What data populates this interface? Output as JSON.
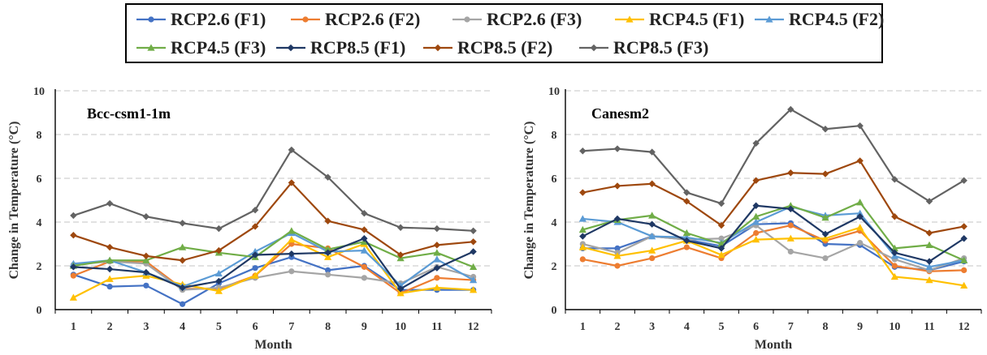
{
  "legend": [
    {
      "name": "RCP2.6 (F1)",
      "color": "#4472C4",
      "marker": "circle"
    },
    {
      "name": "RCP2.6 (F2)",
      "color": "#ED7D31",
      "marker": "circle"
    },
    {
      "name": "RCP2.6 (F3)",
      "color": "#A5A5A5",
      "marker": "circle"
    },
    {
      "name": "RCP4.5 (F1)",
      "color": "#FFC000",
      "marker": "triangle"
    },
    {
      "name": "RCP4.5 (F2)",
      "color": "#5B9BD5",
      "marker": "triangle"
    },
    {
      "name": "RCP4.5 (F3)",
      "color": "#70AD47",
      "marker": "triangle"
    },
    {
      "name": "RCP8.5 (F1)",
      "color": "#1F3864",
      "marker": "diamond"
    },
    {
      "name": "RCP8.5 (F2)",
      "color": "#9E480E",
      "marker": "diamond"
    },
    {
      "name": "RCP8.5 (F3)",
      "color": "#636363",
      "marker": "diamond"
    }
  ],
  "chart_data": [
    {
      "type": "line",
      "title": "Bcc-csm1-1m",
      "xlabel": "Month",
      "ylabel": "Change in Temperature (°C)",
      "x": [
        1,
        2,
        3,
        4,
        5,
        6,
        7,
        8,
        9,
        10,
        11,
        12
      ],
      "ylim": [
        0,
        10
      ],
      "yticks": [
        0,
        2,
        4,
        6,
        8,
        10
      ],
      "grid": true,
      "series": [
        {
          "name": "RCP2.6 (F1)",
          "values": [
            1.6,
            1.05,
            1.1,
            0.25,
            1.2,
            1.9,
            2.4,
            1.8,
            2.0,
            0.9,
            0.9,
            0.9
          ]
        },
        {
          "name": "RCP2.6 (F2)",
          "values": [
            1.55,
            2.2,
            2.2,
            0.95,
            0.95,
            1.55,
            3.0,
            2.8,
            1.95,
            0.75,
            1.45,
            1.35
          ]
        },
        {
          "name": "RCP2.6 (F3)",
          "values": [
            2.05,
            2.2,
            2.1,
            0.9,
            1.0,
            1.45,
            1.75,
            1.6,
            1.45,
            1.2,
            1.95,
            1.5
          ]
        },
        {
          "name": "RCP4.5 (F1)",
          "values": [
            0.55,
            1.4,
            1.55,
            1.15,
            0.85,
            1.55,
            3.2,
            2.4,
            3.0,
            0.75,
            1.0,
            0.9
          ]
        },
        {
          "name": "RCP4.5 (F2)",
          "values": [
            2.1,
            2.25,
            1.7,
            1.05,
            1.65,
            2.65,
            3.5,
            2.65,
            2.7,
            1.1,
            2.3,
            1.35
          ]
        },
        {
          "name": "RCP4.5 (F3)",
          "values": [
            2.0,
            2.25,
            2.25,
            2.85,
            2.6,
            2.4,
            3.6,
            2.75,
            3.1,
            2.35,
            2.6,
            1.95
          ]
        },
        {
          "name": "RCP8.5 (F1)",
          "values": [
            1.95,
            1.85,
            1.7,
            1.0,
            1.3,
            2.5,
            2.55,
            2.6,
            3.25,
            0.95,
            1.9,
            2.65
          ]
        },
        {
          "name": "RCP8.5 (F2)",
          "values": [
            3.4,
            2.85,
            2.45,
            2.25,
            2.7,
            3.8,
            5.8,
            4.05,
            3.65,
            2.5,
            2.95,
            3.1
          ]
        },
        {
          "name": "RCP8.5 (F3)",
          "values": [
            4.3,
            4.85,
            4.25,
            3.95,
            3.7,
            4.55,
            7.3,
            6.05,
            4.4,
            3.75,
            3.7,
            3.6
          ]
        }
      ]
    },
    {
      "type": "line",
      "title": "Canesm2",
      "xlabel": "Month",
      "ylabel": "Change in Temperature (°C)",
      "x": [
        1,
        2,
        3,
        4,
        5,
        6,
        7,
        8,
        9,
        10,
        11,
        12
      ],
      "ylim": [
        0,
        10
      ],
      "yticks": [
        0,
        2,
        4,
        6,
        8,
        10
      ],
      "grid": true,
      "series": [
        {
          "name": "RCP2.6 (F1)",
          "values": [
            2.8,
            2.8,
            3.35,
            3.2,
            2.9,
            3.9,
            3.95,
            3.0,
            2.95,
            1.95,
            1.8,
            2.2
          ]
        },
        {
          "name": "RCP2.6 (F2)",
          "values": [
            2.3,
            2.0,
            2.35,
            2.85,
            2.35,
            3.5,
            3.85,
            3.15,
            3.6,
            2.0,
            1.75,
            1.8
          ]
        },
        {
          "name": "RCP2.6 (F3)",
          "values": [
            3.0,
            2.6,
            3.35,
            3.2,
            3.25,
            3.85,
            2.65,
            2.35,
            3.05,
            2.3,
            1.8,
            2.35
          ]
        },
        {
          "name": "RCP4.5 (F1)",
          "values": [
            2.85,
            2.45,
            2.7,
            3.15,
            2.5,
            3.2,
            3.25,
            3.25,
            3.75,
            1.5,
            1.35,
            1.1
          ]
        },
        {
          "name": "RCP4.5 (F2)",
          "values": [
            4.15,
            4.0,
            3.35,
            3.3,
            3.05,
            4.0,
            4.7,
            4.3,
            4.4,
            2.45,
            1.95,
            2.25
          ]
        },
        {
          "name": "RCP4.5 (F3)",
          "values": [
            3.65,
            4.1,
            4.3,
            3.5,
            3.0,
            4.25,
            4.75,
            4.2,
            4.9,
            2.8,
            2.95,
            2.25
          ]
        },
        {
          "name": "RCP8.5 (F1)",
          "values": [
            3.35,
            4.15,
            3.9,
            3.15,
            2.8,
            4.75,
            4.6,
            3.45,
            4.25,
            2.6,
            2.2,
            3.25
          ]
        },
        {
          "name": "RCP8.5 (F2)",
          "values": [
            5.35,
            5.65,
            5.75,
            4.95,
            3.85,
            5.9,
            6.25,
            6.2,
            6.8,
            4.25,
            3.5,
            3.8
          ]
        },
        {
          "name": "RCP8.5 (F3)",
          "values": [
            7.25,
            7.35,
            7.2,
            5.35,
            4.85,
            7.6,
            9.15,
            8.25,
            8.4,
            5.95,
            4.95,
            5.9
          ]
        }
      ]
    }
  ]
}
